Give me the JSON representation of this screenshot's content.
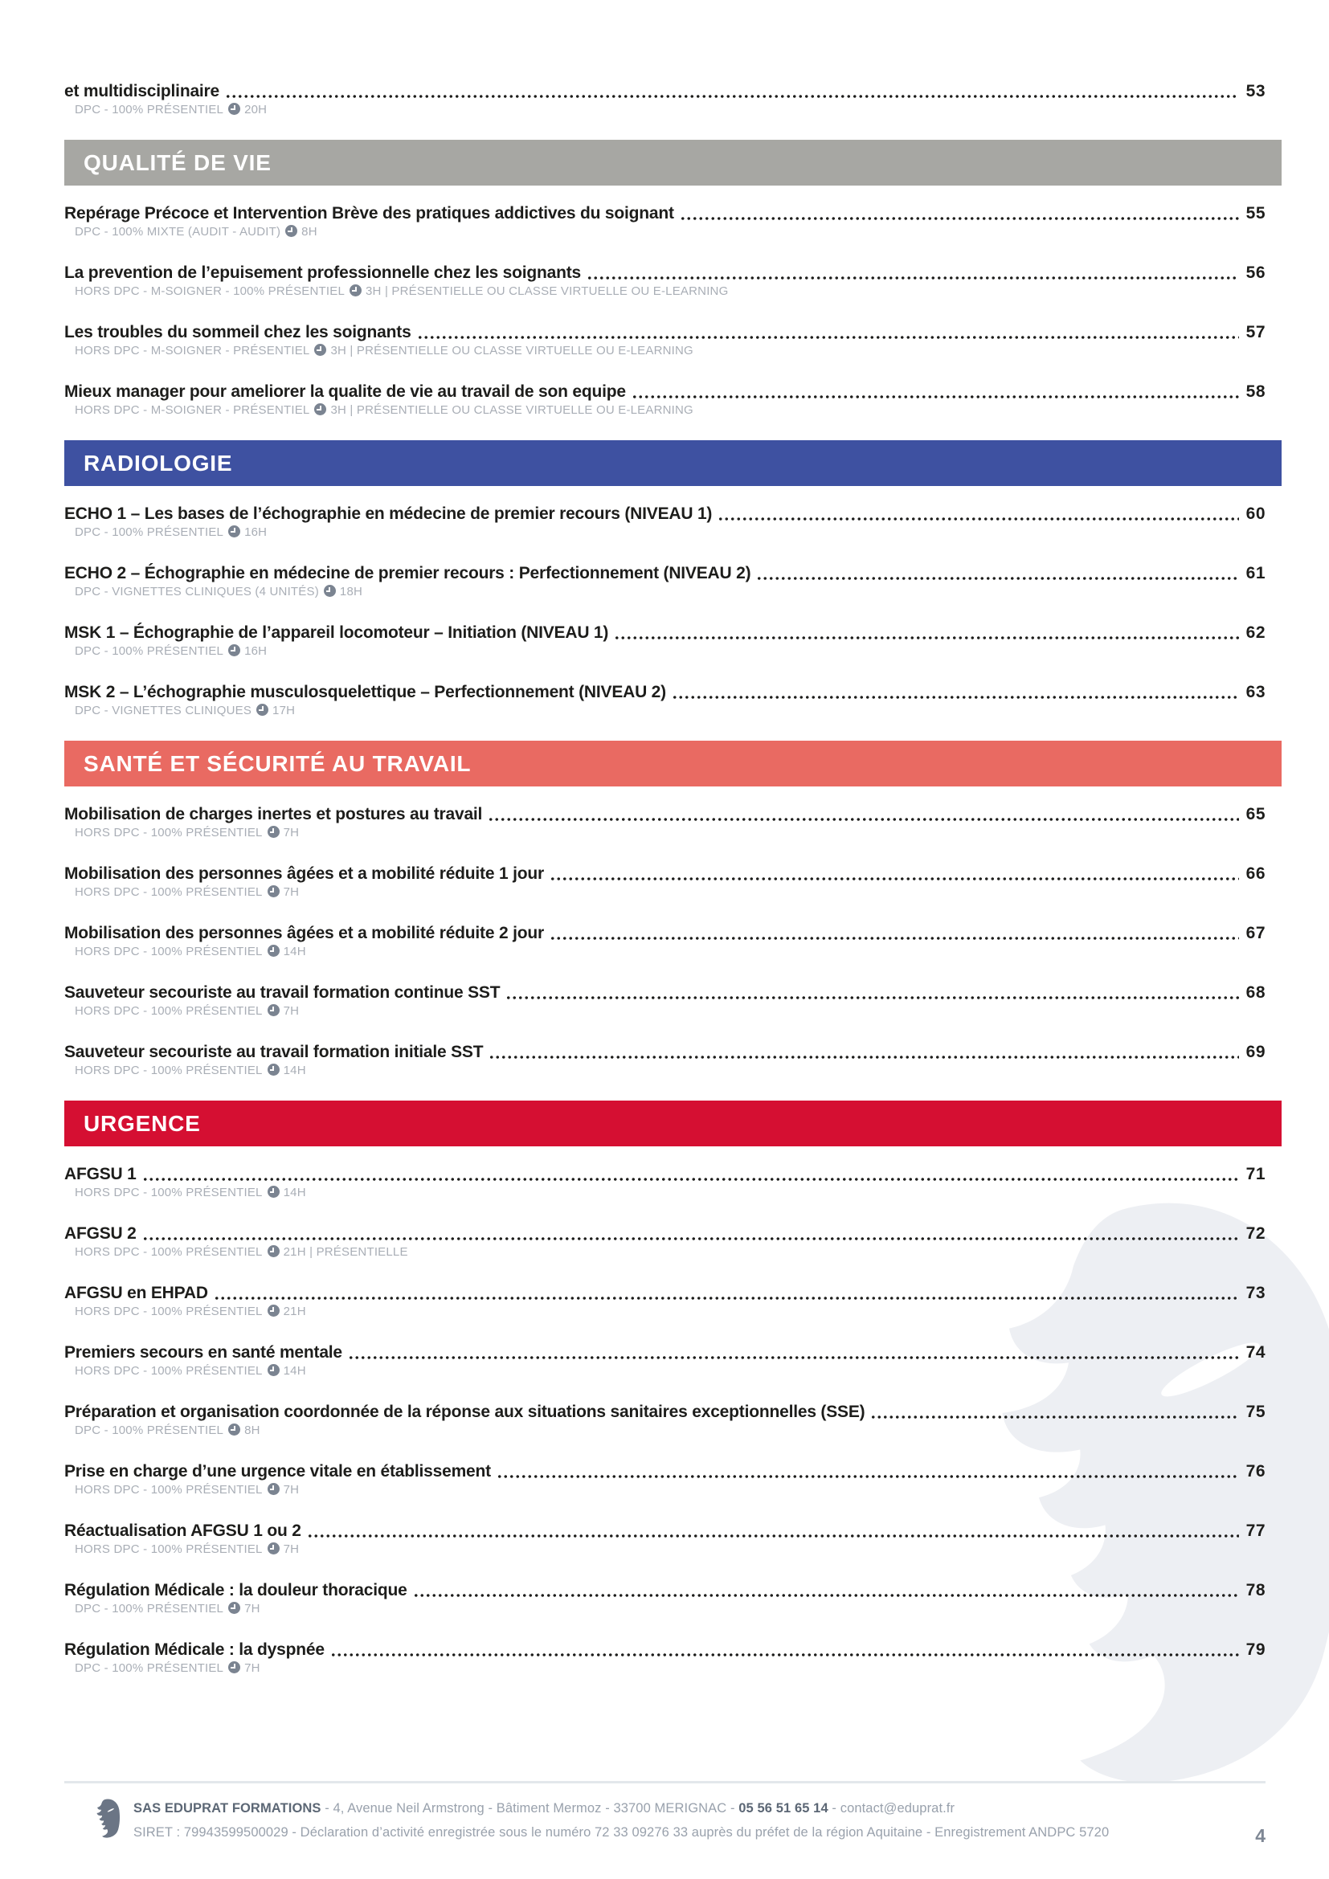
{
  "page_number": "4",
  "colors": {
    "gray": "#a7a7a3",
    "blue": "#3e51a1",
    "coral": "#e96a62",
    "red": "#d50f32"
  },
  "toc": {
    "sections": [
      {
        "title": null,
        "color": null,
        "entries": [
          {
            "title": "et multidisciplinaire",
            "page": "53",
            "meta": "DPC - 100% PRÉSENTIEL",
            "hours": "20H",
            "meta_after": ""
          }
        ]
      },
      {
        "title": "QUALITÉ DE VIE",
        "color": "gray",
        "entries": [
          {
            "title": "Repérage Précoce et Intervention Brève des pratiques addictives du soignant ",
            "page": "55",
            "meta": "DPC - 100% MIXTE (AUDIT - AUDIT)",
            "hours": "8H",
            "meta_after": ""
          },
          {
            "title": "La prevention de l’epuisement professionnelle chez les soignants",
            "page": "56",
            "meta": "HORS DPC - M-SOIGNER - 100% PRÉSENTIEL",
            "hours": "3H",
            "meta_after": "  | PRÉSENTIELLE OU CLASSE VIRTUELLE OU E-LEARNING"
          },
          {
            "title": "Les troubles du sommeil chez les soignants",
            "page": "57",
            "meta": "HORS DPC - M-SOIGNER - PRÉSENTIEL",
            "hours": "3H",
            "meta_after": "  | PRÉSENTIELLE OU CLASSE VIRTUELLE OU E-LEARNING"
          },
          {
            "title": "Mieux manager pour ameliorer la qualite de vie au travail de son equipe ",
            "page": "58",
            "meta": "HORS DPC - M-SOIGNER - PRÉSENTIEL",
            "hours": "3H",
            "meta_after": "  | PRÉSENTIELLE OU CLASSE VIRTUELLE OU E-LEARNING"
          }
        ]
      },
      {
        "title": "RADIOLOGIE",
        "color": "blue",
        "entries": [
          {
            "title": "ECHO 1 – Les bases de l’échographie en médecine de premier recours (NIVEAU 1)",
            "page": "60",
            "meta": "DPC - 100% PRÉSENTIEL",
            "hours": "16H",
            "meta_after": ""
          },
          {
            "title": "ECHO 2 – Échographie en médecine de premier recours : Perfectionnement (NIVEAU 2)",
            "page": "61",
            "meta": "DPC - VIGNETTES CLINIQUES (4 UNITÉS)",
            "hours": "18H",
            "meta_after": ""
          },
          {
            "title": "MSK 1 – Échographie de l’appareil locomoteur – Initiation (NIVEAU 1)",
            "page": "62",
            "meta": "DPC - 100% PRÉSENTIEL",
            "hours": "16H",
            "meta_after": ""
          },
          {
            "title": "MSK 2 – L’échographie musculosquelettique – Perfectionnement (NIVEAU 2)",
            "page": "63",
            "meta": "DPC - VIGNETTES CLINIQUES",
            "hours": "17H",
            "meta_after": ""
          }
        ]
      },
      {
        "title": "SANTÉ ET SÉCURITÉ AU TRAVAIL",
        "color": "coral",
        "entries": [
          {
            "title": "Mobilisation de charges inertes et postures au travail ",
            "page": "65",
            "meta": "HORS DPC - 100% PRÉSENTIEL",
            "hours": "7H",
            "meta_after": ""
          },
          {
            "title": "Mobilisation des personnes âgées et a mobilité réduite 1 jour ",
            "page": "66",
            "meta": "HORS DPC - 100% PRÉSENTIEL",
            "hours": "7H",
            "meta_after": ""
          },
          {
            "title": "Mobilisation des personnes âgées et a mobilité réduite 2 jour ",
            "page": "67",
            "meta": "HORS DPC - 100% PRÉSENTIEL",
            "hours": "14H",
            "meta_after": ""
          },
          {
            "title": "Sauveteur secouriste au travail formation continue SST ",
            "page": "68",
            "meta": "HORS DPC - 100% PRÉSENTIEL",
            "hours": "7H",
            "meta_after": ""
          },
          {
            "title": "Sauveteur secouriste au travail formation initiale SST ",
            "page": "69",
            "meta": "HORS DPC - 100% PRÉSENTIEL",
            "hours": "14H",
            "meta_after": ""
          }
        ]
      },
      {
        "title": "URGENCE",
        "color": "red",
        "entries": [
          {
            "title": "AFGSU 1 ",
            "page": "71",
            "meta": "HORS DPC - 100% PRÉSENTIEL",
            "hours": "14H",
            "meta_after": ""
          },
          {
            "title": "AFGSU 2 ",
            "page": "72",
            "meta": "HORS DPC - 100% PRÉSENTIEL",
            "hours": "21H",
            "meta_after": "  | PRÉSENTIELLE"
          },
          {
            "title": "AFGSU en EHPAD",
            "page": "73",
            "meta": "HORS DPC - 100% PRÉSENTIEL",
            "hours": "21H",
            "meta_after": ""
          },
          {
            "title": "Premiers secours en santé mentale ",
            "page": "74",
            "meta": "HORS DPC - 100% PRÉSENTIEL",
            "hours": "14H",
            "meta_after": ""
          },
          {
            "title": "Préparation et organisation coordonnée de la réponse aux situations sanitaires exceptionnelles (SSE)",
            "page": "75",
            "meta": "DPC - 100% PRÉSENTIEL",
            "hours": "8H",
            "meta_after": ""
          },
          {
            "title": "Prise en charge d’une urgence vitale en établissement ",
            "page": "76",
            "meta": "HORS DPC - 100% PRÉSENTIEL",
            "hours": "7H",
            "meta_after": ""
          },
          {
            "title": "Réactualisation AFGSU 1 ou 2",
            "page": "77",
            "meta": "HORS DPC - 100% PRÉSENTIEL",
            "hours": "7H",
            "meta_after": ""
          },
          {
            "title": "Régulation Médicale : la douleur thoracique ",
            "page": "78",
            "meta": "DPC - 100% PRÉSENTIEL",
            "hours": "7H",
            "meta_after": ""
          },
          {
            "title": "Régulation Médicale : la dyspnée",
            "page": "79",
            "meta": "DPC - 100% PRÉSENTIEL",
            "hours": "7H",
            "meta_after": ""
          }
        ]
      }
    ]
  },
  "footer": {
    "company": "SAS EDUPRAT FORMATIONS",
    "address": " - 4, Avenue Neil Armstrong - Bâtiment Mermoz - 33700 MERIGNAC - ",
    "phone": "05 56 51 65 14",
    "separator": " - ",
    "email": "contact@eduprat.fr",
    "line2": "SIRET : 79943599500029 - Déclaration d’activité enregistrée sous le numéro 72 33 09276 33 auprès du préfet de la région Aquitaine - Enregistrement ANDPC 5720"
  }
}
